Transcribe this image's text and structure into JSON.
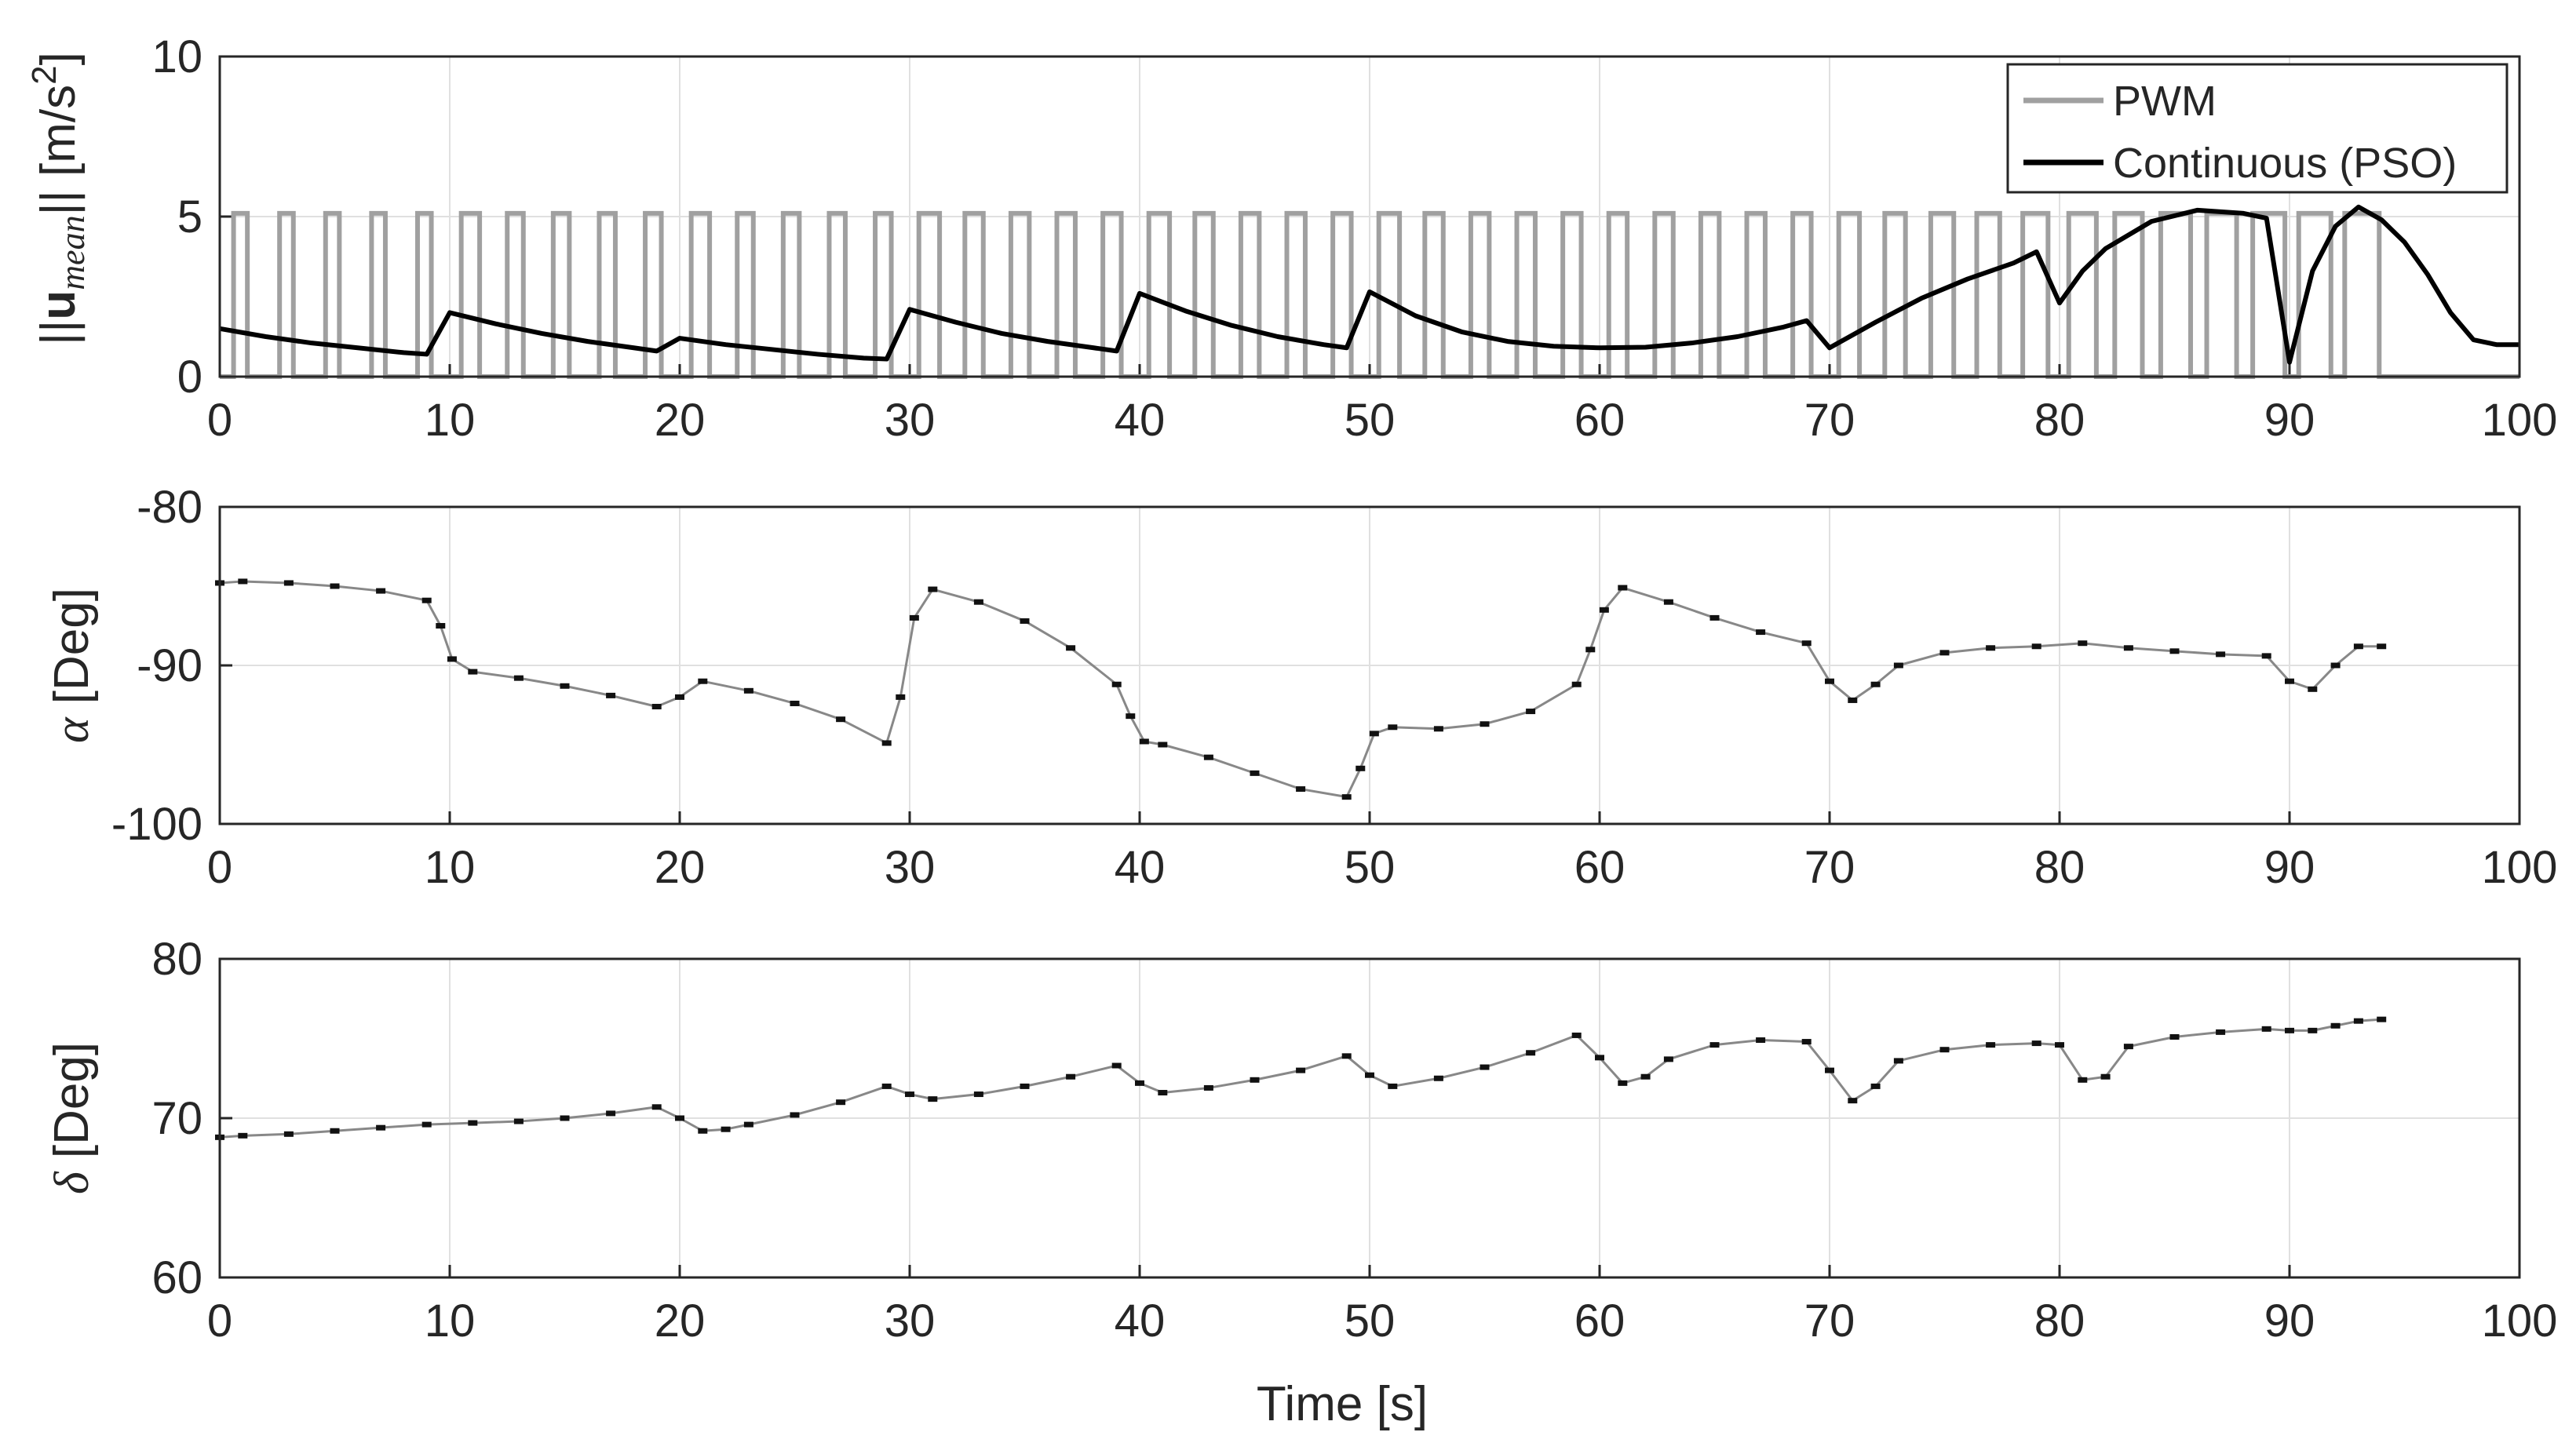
{
  "chart_data": [
    {
      "type": "line",
      "title": "",
      "xlabel": "",
      "ylabel": "||u_mean|| [m/s^2]",
      "ylabel_parts": {
        "open": "||",
        "bold": "u",
        "sub": "mean",
        "close": "|| [m/s",
        "sup": "2",
        "end": "]"
      },
      "xlim": [
        0,
        100
      ],
      "ylim": [
        0,
        10
      ],
      "xticks": [
        0,
        10,
        20,
        30,
        40,
        50,
        60,
        70,
        80,
        90,
        100
      ],
      "yticks": [
        0,
        5,
        10
      ],
      "grid": true,
      "legend_position": "top-right",
      "pwm": {
        "name": "PWM",
        "color": "#a0a0a0",
        "amplitude": 5.1,
        "pulse_on_start": [
          0.6,
          2.6,
          4.6,
          6.6,
          8.6,
          10.5,
          12.5,
          14.5,
          16.5,
          18.5,
          20.5,
          22.5,
          24.5,
          26.5,
          28.5,
          30.4,
          32.4,
          34.4,
          36.4,
          38.4,
          40.4,
          42.4,
          44.4,
          46.4,
          48.4,
          50.4,
          52.4,
          54.4,
          56.4,
          58.4,
          60.4,
          62.4,
          64.4,
          66.4,
          68.4,
          70.4,
          72.4,
          74.4,
          76.4,
          78.4,
          80.4,
          82.4,
          84.4,
          86.4,
          88.4,
          90.4,
          92.4
        ],
        "pulse_width": [
          0.6,
          0.6,
          0.6,
          0.6,
          0.6,
          0.8,
          0.7,
          0.7,
          0.7,
          0.7,
          0.8,
          0.7,
          0.7,
          0.7,
          0.7,
          0.9,
          0.8,
          0.8,
          0.8,
          0.8,
          0.9,
          0.8,
          0.8,
          0.8,
          0.8,
          0.9,
          0.8,
          0.8,
          0.8,
          0.8,
          0.8,
          0.8,
          0.8,
          0.8,
          0.8,
          0.9,
          0.9,
          1.0,
          1.0,
          1.1,
          1.2,
          1.2,
          1.3,
          1.3,
          1.4,
          1.4,
          1.5
        ]
      },
      "series": [
        {
          "name": "Continuous (PSO)",
          "color": "#000000",
          "x": [
            0,
            2,
            4,
            6,
            8,
            9,
            10,
            12,
            14,
            16,
            18,
            19,
            20,
            22,
            24,
            26,
            28,
            29,
            30,
            32,
            34,
            36,
            38,
            39,
            40,
            42,
            44,
            46,
            48,
            49,
            50,
            52,
            54,
            56,
            58,
            60,
            62,
            64,
            66,
            68,
            69,
            70,
            72,
            74,
            76,
            78,
            79,
            80,
            81,
            82,
            84,
            86,
            88,
            89,
            90,
            91,
            92,
            93,
            94,
            95,
            96,
            97,
            98,
            99,
            100
          ],
          "y": [
            1.5,
            1.25,
            1.05,
            0.9,
            0.75,
            0.7,
            2.0,
            1.65,
            1.35,
            1.1,
            0.9,
            0.8,
            1.2,
            1.0,
            0.85,
            0.7,
            0.58,
            0.55,
            2.1,
            1.7,
            1.35,
            1.1,
            0.9,
            0.8,
            2.6,
            2.05,
            1.6,
            1.25,
            1.0,
            0.9,
            2.65,
            1.9,
            1.4,
            1.1,
            0.95,
            0.9,
            0.92,
            1.05,
            1.25,
            1.55,
            1.75,
            0.9,
            1.7,
            2.45,
            3.05,
            3.55,
            3.9,
            2.3,
            3.3,
            4.0,
            4.85,
            5.2,
            5.1,
            4.95,
            0.45,
            3.3,
            4.7,
            5.3,
            4.9,
            4.2,
            3.2,
            2.0,
            1.15,
            1.0,
            1.0
          ]
        }
      ]
    },
    {
      "type": "line",
      "title": "",
      "xlabel": "",
      "ylabel": "α [Deg]",
      "ylabel_symbol": "α",
      "ylabel_unit": " [Deg]",
      "xlim": [
        0,
        100
      ],
      "ylim": [
        -100,
        -80
      ],
      "xticks": [
        0,
        10,
        20,
        30,
        40,
        50,
        60,
        70,
        80,
        90,
        100
      ],
      "yticks": [
        -100,
        -90,
        -80
      ],
      "grid": true,
      "series": [
        {
          "name": "alpha",
          "color": "#888888",
          "x": [
            0,
            1,
            3,
            5,
            7,
            9,
            9.6,
            10.1,
            11,
            13,
            15,
            17,
            19,
            20,
            21,
            23,
            25,
            27,
            29,
            29.6,
            30.2,
            31,
            33,
            35,
            37,
            39,
            39.6,
            40.2,
            41,
            43,
            45,
            47,
            49,
            49.6,
            50.2,
            51,
            53,
            55,
            57,
            59,
            59.6,
            60.2,
            61,
            63,
            65,
            67,
            69,
            70,
            71,
            72,
            73,
            75,
            77,
            79,
            81,
            83,
            85,
            87,
            89,
            90,
            91,
            92,
            93,
            94
          ],
          "y": [
            -84.8,
            -84.7,
            -84.8,
            -85.0,
            -85.3,
            -85.9,
            -87.5,
            -89.6,
            -90.4,
            -90.8,
            -91.3,
            -91.9,
            -92.6,
            -92.0,
            -91.0,
            -91.6,
            -92.4,
            -93.4,
            -94.9,
            -92.0,
            -87.0,
            -85.2,
            -86.0,
            -87.2,
            -88.9,
            -91.2,
            -93.2,
            -94.8,
            -95.0,
            -95.8,
            -96.8,
            -97.8,
            -98.3,
            -96.5,
            -94.3,
            -93.9,
            -94.0,
            -93.7,
            -92.9,
            -91.2,
            -89.0,
            -86.5,
            -85.1,
            -86.0,
            -87.0,
            -87.9,
            -88.6,
            -91.0,
            -92.2,
            -91.2,
            -90.0,
            -89.2,
            -88.9,
            -88.8,
            -88.6,
            -88.9,
            -89.1,
            -89.3,
            -89.4,
            -91.0,
            -91.5,
            -90.0,
            -88.8,
            -88.8
          ]
        }
      ]
    },
    {
      "type": "line",
      "title": "",
      "xlabel": "Time [s]",
      "ylabel": "δ [Deg]",
      "ylabel_symbol": "δ",
      "ylabel_unit": " [Deg]",
      "xlim": [
        0,
        100
      ],
      "ylim": [
        60,
        80
      ],
      "xticks": [
        0,
        10,
        20,
        30,
        40,
        50,
        60,
        70,
        80,
        90,
        100
      ],
      "yticks": [
        60,
        70,
        80
      ],
      "grid": true,
      "series": [
        {
          "name": "delta",
          "color": "#888888",
          "x": [
            0,
            1,
            3,
            5,
            7,
            9,
            11,
            13,
            15,
            17,
            19,
            20,
            21,
            22,
            23,
            25,
            27,
            29,
            30,
            31,
            33,
            35,
            37,
            39,
            40,
            41,
            43,
            45,
            47,
            49,
            50,
            51,
            53,
            55,
            57,
            59,
            60,
            61,
            62,
            63,
            65,
            67,
            69,
            70,
            71,
            72,
            73,
            75,
            77,
            79,
            80,
            81,
            82,
            83,
            85,
            87,
            89,
            90,
            91,
            92,
            93,
            94
          ],
          "y": [
            68.8,
            68.9,
            69.0,
            69.2,
            69.4,
            69.6,
            69.7,
            69.8,
            70.0,
            70.3,
            70.7,
            70.0,
            69.2,
            69.3,
            69.6,
            70.2,
            71.0,
            72.0,
            71.5,
            71.2,
            71.5,
            72.0,
            72.6,
            73.3,
            72.2,
            71.6,
            71.9,
            72.4,
            73.0,
            73.9,
            72.7,
            72.0,
            72.5,
            73.2,
            74.1,
            75.2,
            73.8,
            72.2,
            72.6,
            73.7,
            74.6,
            74.9,
            74.8,
            73.0,
            71.1,
            72.0,
            73.6,
            74.3,
            74.6,
            74.7,
            74.6,
            72.4,
            72.6,
            74.5,
            75.1,
            75.4,
            75.6,
            75.5,
            75.5,
            75.8,
            76.1,
            76.2
          ]
        }
      ]
    }
  ]
}
